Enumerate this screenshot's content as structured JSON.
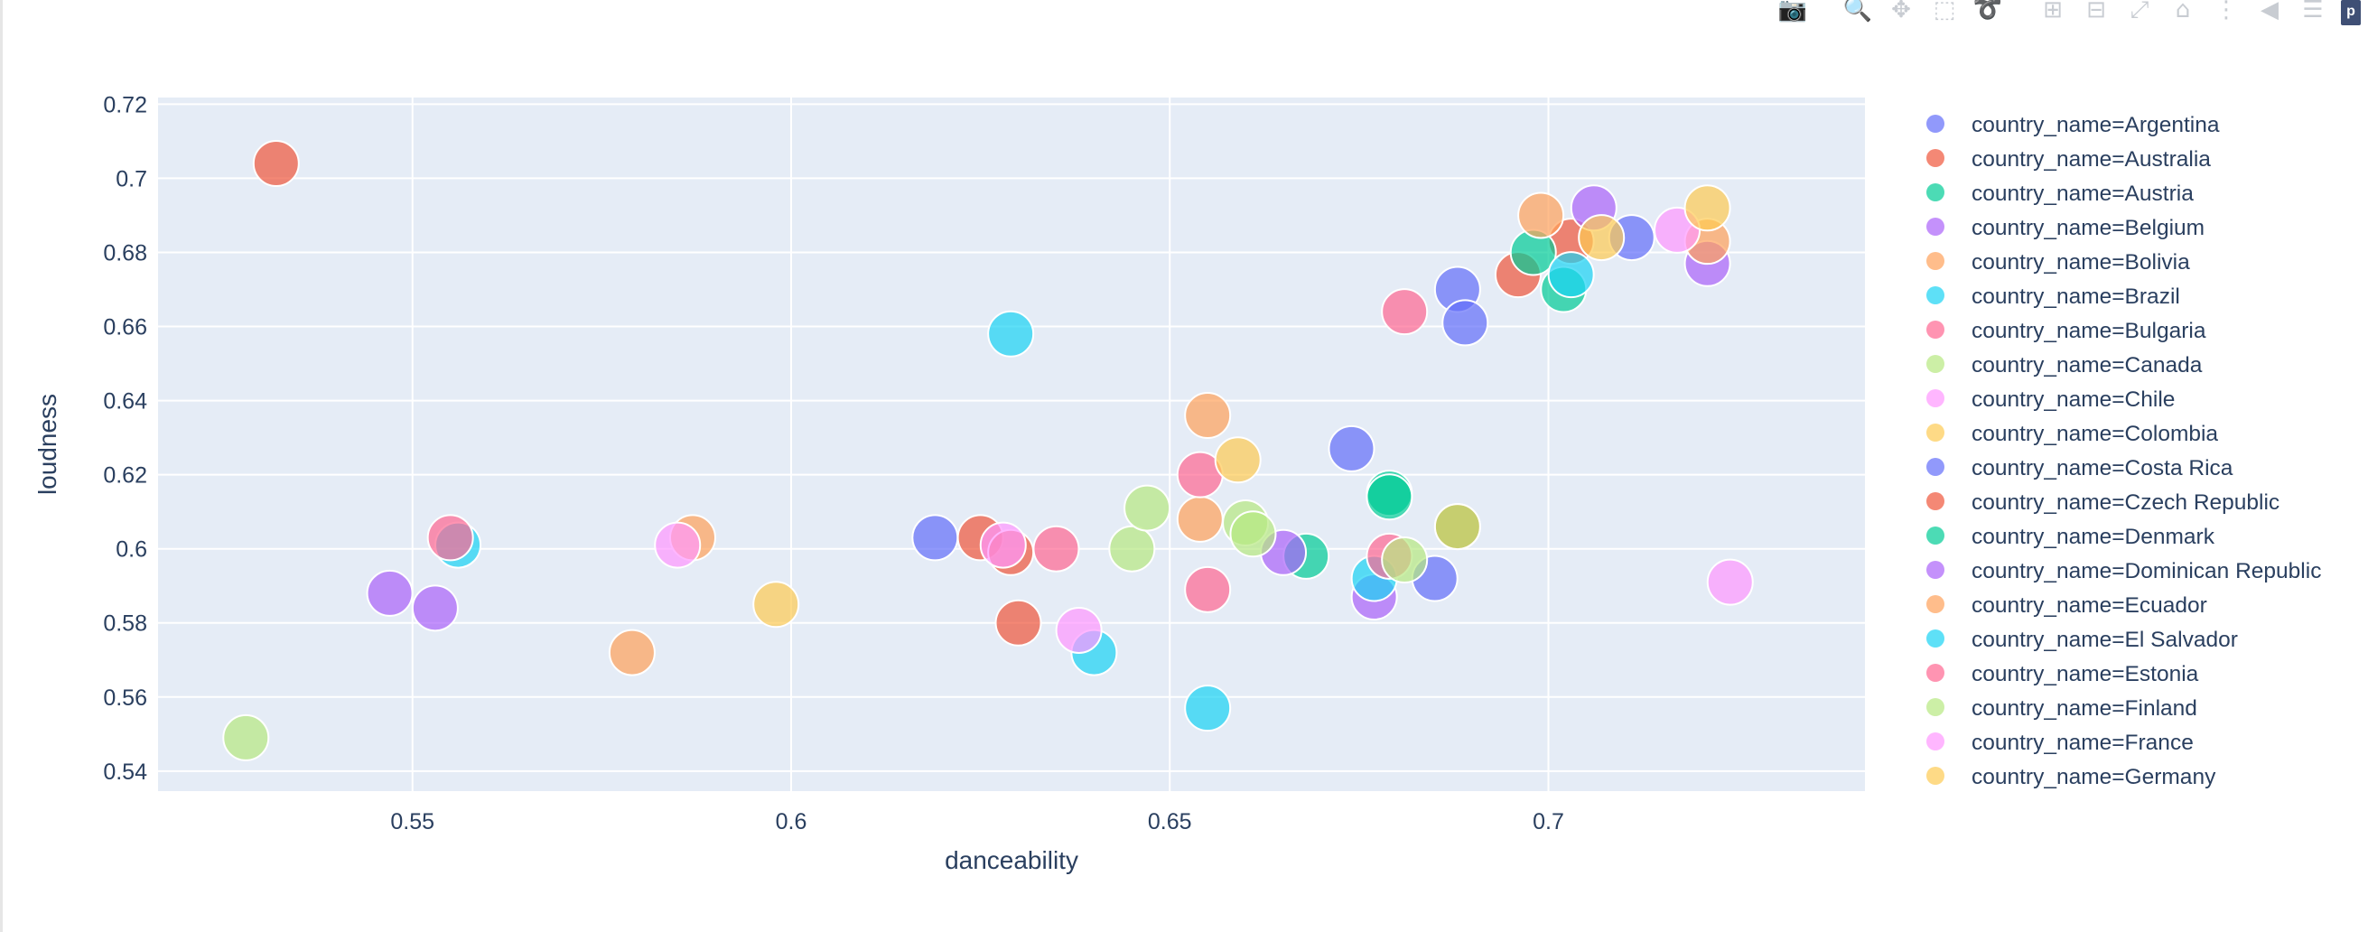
{
  "modebar": {
    "buttons": [
      {
        "name": "camera-icon",
        "glyph": "📷",
        "active": false
      },
      {
        "name": "zoom-icon",
        "glyph": "🔍",
        "active": true
      },
      {
        "name": "pan-icon",
        "glyph": "✥",
        "active": false
      },
      {
        "name": "box-select-icon",
        "glyph": "⬚",
        "active": false
      },
      {
        "name": "lasso-select-icon",
        "glyph": "➰",
        "active": false
      },
      {
        "name": "zoom-in-icon",
        "glyph": "⊞",
        "active": false
      },
      {
        "name": "zoom-out-icon",
        "glyph": "⊟",
        "active": false
      },
      {
        "name": "autoscale-icon",
        "glyph": "⤢",
        "active": false
      },
      {
        "name": "reset-axes-icon",
        "glyph": "⌂",
        "active": false
      },
      {
        "name": "spike-lines-icon",
        "glyph": "⋮",
        "active": false
      },
      {
        "name": "hover-closest-icon",
        "glyph": "◀",
        "active": false
      },
      {
        "name": "hover-compare-icon",
        "glyph": "☰",
        "active": false
      }
    ],
    "logo_text": "p"
  },
  "chart_data": {
    "type": "scatter",
    "xlabel": "danceability",
    "ylabel": "loudness",
    "xlim": [
      0.5164,
      0.7418
    ],
    "ylim": [
      0.5346,
      0.7218
    ],
    "xticks": [
      0.55,
      0.6,
      0.65,
      0.7
    ],
    "xtick_labels": [
      "0.55",
      "0.6",
      "0.65",
      "0.7"
    ],
    "yticks": [
      0.54,
      0.56,
      0.58,
      0.6,
      0.62,
      0.64,
      0.66,
      0.68,
      0.7,
      0.72
    ],
    "ytick_labels": [
      "0.54",
      "0.56",
      "0.58",
      "0.6",
      "0.62",
      "0.64",
      "0.66",
      "0.68",
      "0.7",
      "0.72"
    ],
    "grid": true,
    "legend_position": "right",
    "legend_prefix": "country_name=",
    "series": [
      {
        "name": "Argentina",
        "color": "#636efa",
        "points": [
          [
            0.619,
            0.603
          ],
          [
            0.674,
            0.627
          ],
          [
            0.688,
            0.67
          ],
          [
            0.689,
            0.661
          ],
          [
            0.685,
            0.592
          ],
          [
            0.711,
            0.684
          ]
        ]
      },
      {
        "name": "Australia",
        "color": "#ef553b",
        "points": [
          [
            0.532,
            0.704
          ],
          [
            0.625,
            0.603
          ],
          [
            0.629,
            0.599
          ],
          [
            0.63,
            0.58
          ],
          [
            0.696,
            0.674
          ],
          [
            0.703,
            0.683
          ]
        ]
      },
      {
        "name": "Austria",
        "color": "#00cc96",
        "points": [
          [
            0.668,
            0.598
          ],
          [
            0.679,
            0.615
          ],
          [
            0.679,
            0.614
          ],
          [
            0.688,
            0.606
          ],
          [
            0.702,
            0.67
          ],
          [
            0.698,
            0.68
          ]
        ]
      },
      {
        "name": "Belgium",
        "color": "#ab63fa",
        "points": [
          [
            0.547,
            0.588
          ],
          [
            0.553,
            0.584
          ],
          [
            0.665,
            0.599
          ],
          [
            0.677,
            0.587
          ],
          [
            0.706,
            0.692
          ],
          [
            0.721,
            0.677
          ]
        ]
      },
      {
        "name": "Bolivia",
        "color": "#ffa15a",
        "points": [
          [
            0.579,
            0.572
          ],
          [
            0.587,
            0.603
          ],
          [
            0.654,
            0.608
          ],
          [
            0.655,
            0.636
          ],
          [
            0.699,
            0.69
          ],
          [
            0.721,
            0.683
          ]
        ]
      },
      {
        "name": "Brazil",
        "color": "#19d3f3",
        "points": [
          [
            0.556,
            0.601
          ],
          [
            0.629,
            0.658
          ],
          [
            0.64,
            0.572
          ],
          [
            0.655,
            0.557
          ],
          [
            0.677,
            0.592
          ],
          [
            0.703,
            0.674
          ]
        ]
      },
      {
        "name": "Bulgaria",
        "color": "#ff6692",
        "points": [
          [
            0.555,
            0.603
          ],
          [
            0.635,
            0.6
          ],
          [
            0.654,
            0.62
          ],
          [
            0.655,
            0.589
          ],
          [
            0.679,
            0.598
          ],
          [
            0.681,
            0.664
          ]
        ]
      },
      {
        "name": "Canada",
        "color": "#b6e880",
        "points": [
          [
            0.528,
            0.549
          ],
          [
            0.645,
            0.6
          ],
          [
            0.647,
            0.611
          ],
          [
            0.66,
            0.607
          ],
          [
            0.661,
            0.604
          ],
          [
            0.681,
            0.597
          ]
        ]
      },
      {
        "name": "Chile",
        "color": "#ff97ff",
        "points": [
          [
            0.585,
            0.601
          ],
          [
            0.628,
            0.601
          ],
          [
            0.638,
            0.578
          ],
          [
            0.717,
            0.686
          ],
          [
            0.724,
            0.591
          ]
        ]
      },
      {
        "name": "Colombia",
        "color": "#fecb52",
        "points": [
          [
            0.598,
            0.585
          ],
          [
            0.659,
            0.624
          ],
          [
            0.688,
            0.606
          ],
          [
            0.707,
            0.684
          ],
          [
            0.721,
            0.692
          ]
        ]
      },
      {
        "name": "Costa Rica",
        "color": "#636efa",
        "points": []
      },
      {
        "name": "Czech Republic",
        "color": "#ef553b",
        "points": []
      },
      {
        "name": "Denmark",
        "color": "#00cc96",
        "points": []
      },
      {
        "name": "Dominican Republic",
        "color": "#ab63fa",
        "points": []
      },
      {
        "name": "Ecuador",
        "color": "#ffa15a",
        "points": []
      },
      {
        "name": "El Salvador",
        "color": "#19d3f3",
        "points": []
      },
      {
        "name": "Estonia",
        "color": "#ff6692",
        "points": []
      },
      {
        "name": "Finland",
        "color": "#b6e880",
        "points": []
      },
      {
        "name": "France",
        "color": "#ff97ff",
        "points": []
      },
      {
        "name": "Germany",
        "color": "#fecb52",
        "points": []
      }
    ]
  }
}
